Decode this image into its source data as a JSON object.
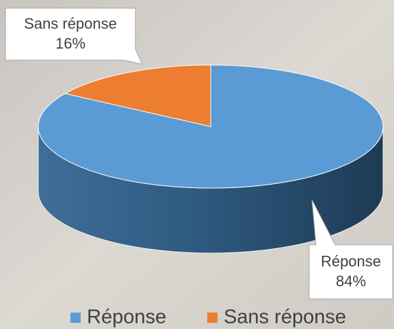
{
  "chart_data": {
    "type": "pie",
    "categories": [
      "Réponse",
      "Sans réponse"
    ],
    "values": [
      84,
      16
    ],
    "value_labels": [
      "84%",
      "16%"
    ],
    "colors": [
      "#5b9bd5",
      "#ed7d31"
    ],
    "legend": "bottom"
  }
}
